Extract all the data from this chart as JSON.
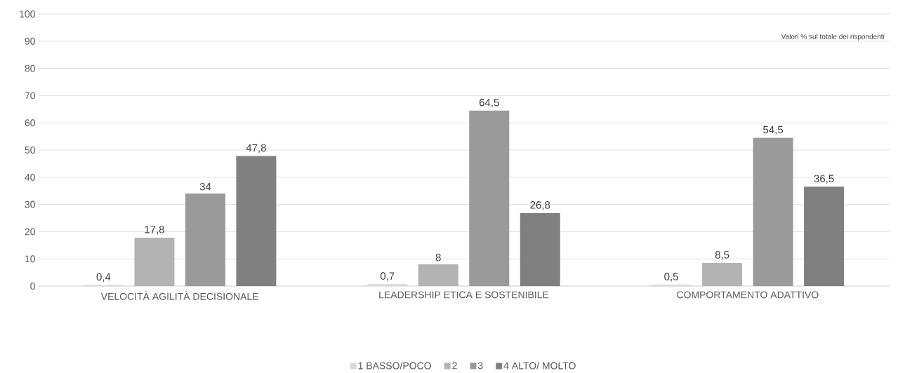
{
  "chart_data": {
    "type": "bar",
    "categories": [
      "VELOCITÀ AGILITÀ DECISIONALE",
      "LEADERSHIP ETICA E SOSTENIBILE",
      "COMPORTAMENTO ADATTIVO"
    ],
    "series": [
      {
        "name": "1 BASSO/POCO",
        "color": "#d9d9d9",
        "values": [
          0.4,
          0.7,
          0.5
        ],
        "value_labels": [
          "0,4",
          "0,7",
          "0,5"
        ]
      },
      {
        "name": "2",
        "color": "#b3b3b3",
        "values": [
          17.8,
          8,
          8.5
        ],
        "value_labels": [
          "17,8",
          "8",
          "8,5"
        ]
      },
      {
        "name": "3",
        "color": "#9a9a9a",
        "values": [
          34,
          64.5,
          54.5
        ],
        "value_labels": [
          "34",
          "64,5",
          "54,5"
        ]
      },
      {
        "name": "4 ALTO/ MOLTO",
        "color": "#808080",
        "values": [
          47.8,
          26.8,
          36.5
        ],
        "value_labels": [
          "47,8",
          "26,8",
          "36,5"
        ]
      }
    ],
    "ylim": [
      0,
      100
    ],
    "yticks": [
      0,
      10,
      20,
      30,
      40,
      50,
      60,
      70,
      80,
      90,
      100
    ],
    "grid": "y",
    "legend": "bottom",
    "annotations": [
      "Valori % sul totale dei rispondenti"
    ]
  }
}
